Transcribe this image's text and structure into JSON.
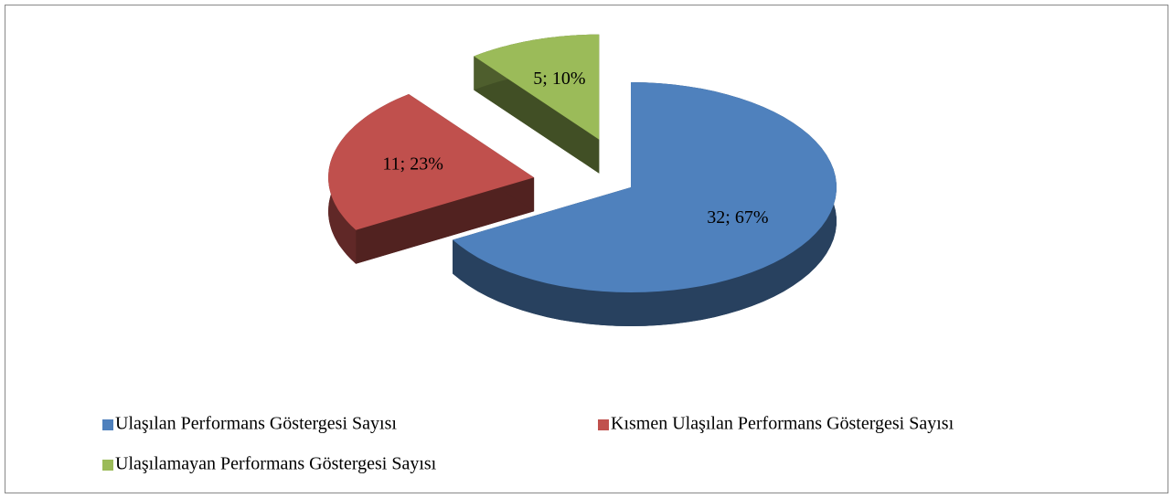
{
  "chart_data": {
    "type": "pie",
    "categories": [
      "Ulaşılan Performans Göstergesi Sayısı",
      "Kısmen Ulaşılan Performans Göstergesi Sayısı",
      "Ulaşılamayan Performans Göstergesi Sayısı"
    ],
    "values": [
      32,
      11,
      5
    ],
    "value_labels": [
      "32; 67%",
      "11; 23%",
      "5; 10%"
    ],
    "colors": [
      "#4f81bd",
      "#c0504d",
      "#9bbb59"
    ],
    "legend": "bottom"
  }
}
